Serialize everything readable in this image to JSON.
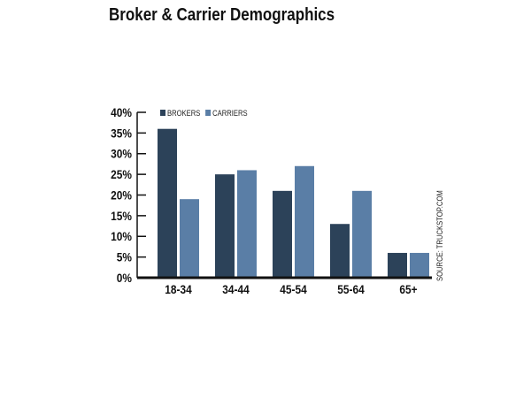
{
  "chart_data": {
    "type": "bar",
    "title": "Broker & Carrier Demographics",
    "categories": [
      "18-34",
      "34-44",
      "45-54",
      "55-64",
      "65+"
    ],
    "series": [
      {
        "name": "BROKERS",
        "color": "#2c4259",
        "values": [
          36,
          25,
          21,
          13,
          6
        ]
      },
      {
        "name": "CARRIERS",
        "color": "#5a7ea6",
        "values": [
          19,
          26,
          27,
          21,
          6
        ]
      }
    ],
    "yticks": [
      "0%",
      "5%",
      "10%",
      "15%",
      "20%",
      "25%",
      "30%",
      "35%",
      "40%"
    ],
    "ylim": [
      0,
      40
    ],
    "xlabel": "",
    "ylabel": "",
    "legend": "top-left",
    "source": "SOURCE: TRUCKSTOP.COM"
  }
}
